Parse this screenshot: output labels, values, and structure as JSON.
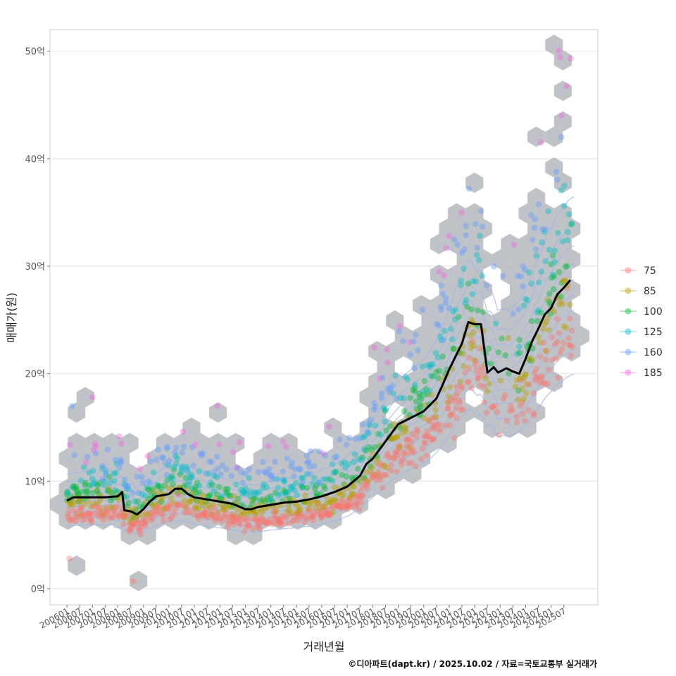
{
  "chart_data": {
    "type": "scatter",
    "ylabel": "매매가(원)",
    "xlabel": "거래년월",
    "caption": "©디아파트(dapt.kr) / 2025.10.02 / 자료=국토교통부 실거래가",
    "y_unit_suffix": "억",
    "ylim": [
      -1.5,
      52
    ],
    "yticks": [
      0,
      10,
      20,
      30,
      40,
      50
    ],
    "ytick_labels": [
      "0억",
      "10억",
      "20억",
      "30억",
      "40억",
      "50억"
    ],
    "xlim": [
      "2005-05",
      "2026-11"
    ],
    "xticks": [
      "200601",
      "200607",
      "200701",
      "200707",
      "200801",
      "200807",
      "200901",
      "200907",
      "201001",
      "201007",
      "201101",
      "201107",
      "201201",
      "201207",
      "201301",
      "201307",
      "201401",
      "201407",
      "201501",
      "201507",
      "201601",
      "201607",
      "201701",
      "201707",
      "201801",
      "201807",
      "201901",
      "201907",
      "202001",
      "202007",
      "202101",
      "202107",
      "202201",
      "202207",
      "202301",
      "202307",
      "202401",
      "202407",
      "202501",
      "202507"
    ],
    "grid": true,
    "legend_position": "right",
    "legend": [
      {
        "label": "75",
        "color": "#F8766D"
      },
      {
        "label": "85",
        "color": "#B79F00"
      },
      {
        "label": "100",
        "color": "#00BA38"
      },
      {
        "label": "125",
        "color": "#00BFC4"
      },
      {
        "label": "160",
        "color": "#619CFF"
      },
      {
        "label": "185",
        "color": "#F564E3"
      }
    ],
    "hex_color": "#b4b9be",
    "contour_color": "#9fb5ea",
    "median_line": {
      "color": "#000000",
      "points": [
        [
          "2006-01",
          8.2
        ],
        [
          "2006-04",
          8.5
        ],
        [
          "2006-07",
          8.5
        ],
        [
          "2007-01",
          8.5
        ],
        [
          "2007-07",
          8.5
        ],
        [
          "2008-01",
          8.6
        ],
        [
          "2008-03",
          9.0
        ],
        [
          "2008-04",
          7.3
        ],
        [
          "2008-07",
          7.2
        ],
        [
          "2008-10",
          6.9
        ],
        [
          "2009-01",
          7.4
        ],
        [
          "2009-04",
          8.1
        ],
        [
          "2009-07",
          8.6
        ],
        [
          "2010-01",
          8.8
        ],
        [
          "2010-04",
          9.3
        ],
        [
          "2010-07",
          9.3
        ],
        [
          "2010-10",
          8.8
        ],
        [
          "2011-01",
          8.5
        ],
        [
          "2011-07",
          8.3
        ],
        [
          "2012-01",
          8.1
        ],
        [
          "2012-07",
          7.9
        ],
        [
          "2013-01",
          7.4
        ],
        [
          "2013-04",
          7.4
        ],
        [
          "2013-07",
          7.6
        ],
        [
          "2014-01",
          7.8
        ],
        [
          "2014-07",
          8.0
        ],
        [
          "2015-01",
          8.1
        ],
        [
          "2015-07",
          8.3
        ],
        [
          "2016-01",
          8.6
        ],
        [
          "2016-07",
          9.0
        ],
        [
          "2017-01",
          9.5
        ],
        [
          "2017-07",
          10.5
        ],
        [
          "2017-10",
          11.6
        ],
        [
          "2018-01",
          12.1
        ],
        [
          "2018-07",
          13.7
        ],
        [
          "2019-01",
          15.3
        ],
        [
          "2019-07",
          15.9
        ],
        [
          "2020-01",
          16.5
        ],
        [
          "2020-07",
          17.7
        ],
        [
          "2020-10",
          19.0
        ],
        [
          "2021-01",
          20.4
        ],
        [
          "2021-04",
          21.6
        ],
        [
          "2021-07",
          22.8
        ],
        [
          "2021-10",
          24.8
        ],
        [
          "2022-01",
          24.6
        ],
        [
          "2022-04",
          24.6
        ],
        [
          "2022-07",
          20.1
        ],
        [
          "2022-10",
          20.6
        ],
        [
          "2022-12",
          20.1
        ],
        [
          "2023-04",
          20.5
        ],
        [
          "2023-07",
          20.2
        ],
        [
          "2023-10",
          20.0
        ],
        [
          "2024-01",
          21.4
        ],
        [
          "2024-04",
          23.0
        ],
        [
          "2024-07",
          24.2
        ],
        [
          "2024-10",
          25.5
        ],
        [
          "2025-01",
          26.1
        ],
        [
          "2025-04",
          27.4
        ],
        [
          "2025-07",
          28.0
        ],
        [
          "2025-10",
          28.7
        ]
      ]
    }
  }
}
